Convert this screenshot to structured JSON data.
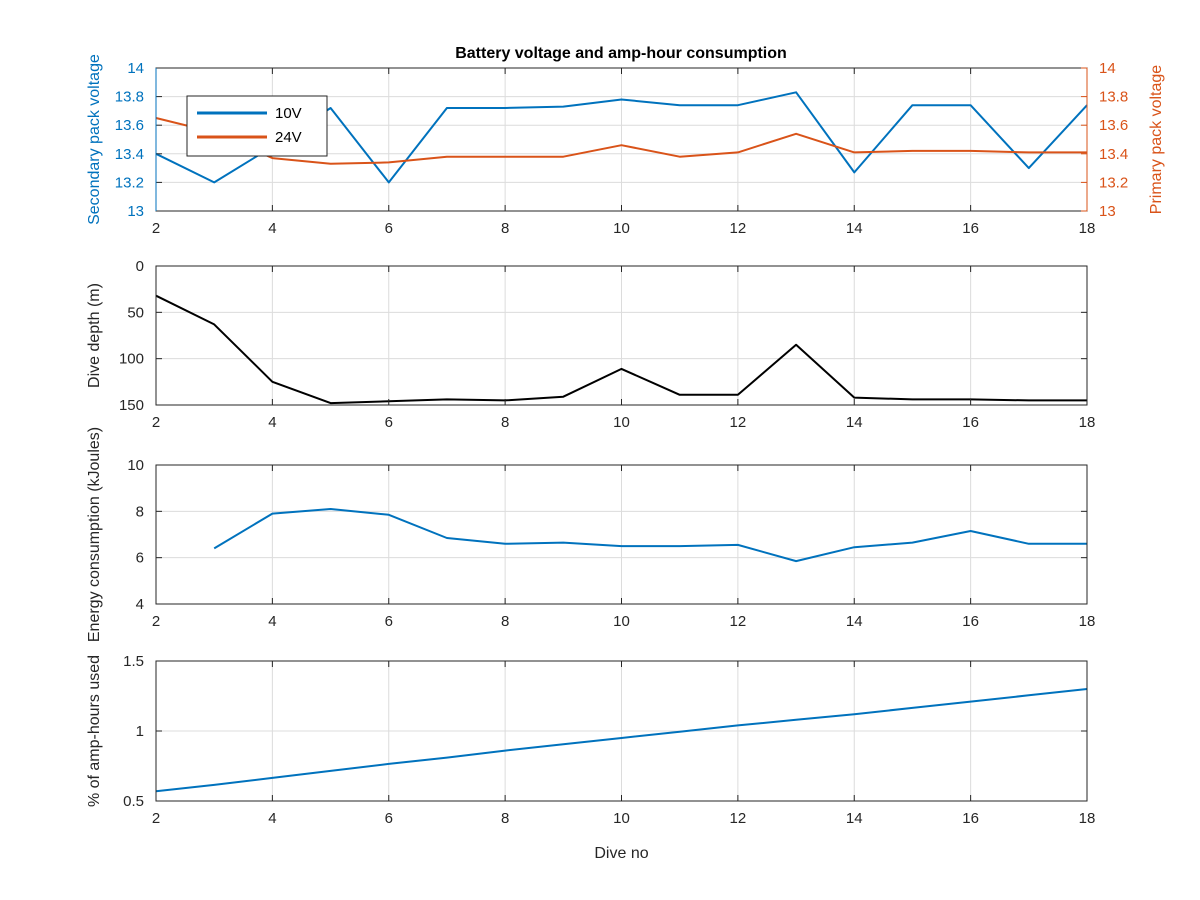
{
  "figure_title": "Battery voltage and amp-hour consumption",
  "colors": {
    "blue": "#0072BD",
    "orange": "#D95319",
    "black": "#000000",
    "grid": "#dcdcdc"
  },
  "chart_data": [
    {
      "type": "line",
      "title": "Battery voltage and amp-hour consumption",
      "xlabel": "",
      "ylabel": "Secondary pack voltage",
      "ylabel_right": "Primary pack voltage",
      "xlim": [
        2,
        18
      ],
      "ylim": [
        13,
        14
      ],
      "ylim_right": [
        13,
        14
      ],
      "x_ticks": [
        2,
        4,
        6,
        8,
        10,
        12,
        14,
        16,
        18
      ],
      "y_ticks": [
        13,
        13.2,
        13.4,
        13.6,
        13.8,
        14
      ],
      "y_ticks_right": [
        13,
        13.2,
        13.4,
        13.6,
        13.8,
        14
      ],
      "grid": true,
      "legend": "top-left",
      "series": [
        {
          "name": "10V",
          "axis": "left",
          "color": "#0072BD",
          "x": [
            2,
            3,
            4,
            5,
            6,
            7,
            8,
            9,
            10,
            11,
            12,
            13,
            14,
            15,
            16,
            17,
            18
          ],
          "y": [
            13.4,
            13.2,
            13.45,
            13.72,
            13.2,
            13.72,
            13.72,
            13.73,
            13.78,
            13.74,
            13.74,
            13.83,
            13.27,
            13.74,
            13.74,
            13.3,
            13.74
          ]
        },
        {
          "name": "24V",
          "axis": "right",
          "color": "#D95319",
          "x": [
            2,
            3,
            4,
            5,
            6,
            7,
            8,
            9,
            10,
            11,
            12,
            13,
            14,
            15,
            16,
            17,
            18
          ],
          "y": [
            13.65,
            13.55,
            13.37,
            13.33,
            13.34,
            13.38,
            13.38,
            13.38,
            13.46,
            13.38,
            13.41,
            13.54,
            13.41,
            13.42,
            13.42,
            13.41,
            13.41
          ]
        }
      ]
    },
    {
      "type": "line",
      "xlabel": "",
      "ylabel": "Dive depth (m)",
      "xlim": [
        2,
        18
      ],
      "ylim": [
        0,
        150
      ],
      "y_reversed": true,
      "x_ticks": [
        2,
        4,
        6,
        8,
        10,
        12,
        14,
        16,
        18
      ],
      "y_ticks": [
        0,
        50,
        100,
        150
      ],
      "grid": true,
      "series": [
        {
          "color": "#000000",
          "x": [
            2,
            3,
            4,
            5,
            6,
            7,
            8,
            9,
            10,
            11,
            12,
            13,
            14,
            15,
            16,
            17,
            18
          ],
          "y": [
            32,
            63,
            125,
            148,
            146,
            144,
            145,
            141,
            111,
            139,
            139,
            85,
            142,
            144,
            144,
            145,
            145
          ]
        }
      ]
    },
    {
      "type": "line",
      "xlabel": "",
      "ylabel": "Energy consumption (kJoules)",
      "xlim": [
        2,
        18
      ],
      "ylim": [
        4,
        10
      ],
      "x_ticks": [
        2,
        4,
        6,
        8,
        10,
        12,
        14,
        16,
        18
      ],
      "y_ticks": [
        4,
        6,
        8,
        10
      ],
      "grid": true,
      "series": [
        {
          "color": "#0072BD",
          "x": [
            3,
            4,
            5,
            6,
            7,
            8,
            9,
            10,
            11,
            12,
            13,
            14,
            15,
            16,
            17,
            18
          ],
          "y": [
            6.4,
            7.9,
            8.1,
            7.85,
            6.85,
            6.6,
            6.65,
            6.5,
            6.5,
            6.55,
            5.85,
            6.45,
            6.65,
            7.15,
            6.6,
            6.6
          ]
        }
      ]
    },
    {
      "type": "line",
      "xlabel": "Dive no",
      "ylabel": "% of amp-hours used",
      "xlim": [
        2,
        18
      ],
      "ylim": [
        0.5,
        1.5
      ],
      "x_ticks": [
        2,
        4,
        6,
        8,
        10,
        12,
        14,
        16,
        18
      ],
      "y_ticks": [
        0.5,
        1,
        1.5
      ],
      "grid": true,
      "series": [
        {
          "color": "#0072BD",
          "x": [
            2,
            3,
            4,
            5,
            6,
            7,
            8,
            9,
            10,
            11,
            12,
            13,
            14,
            15,
            16,
            17,
            18
          ],
          "y": [
            0.57,
            0.615,
            0.665,
            0.715,
            0.765,
            0.81,
            0.86,
            0.905,
            0.95,
            0.995,
            1.04,
            1.08,
            1.12,
            1.165,
            1.21,
            1.255,
            1.3
          ]
        }
      ]
    }
  ]
}
